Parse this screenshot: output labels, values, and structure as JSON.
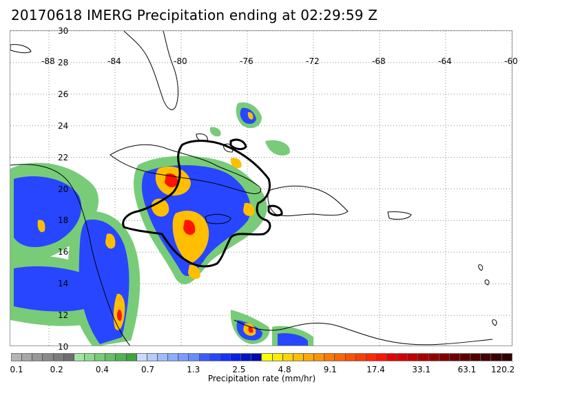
{
  "title": "20170618 IMERG Precipitation ending at 02:29:59 Z",
  "map": {
    "lat_labels": [
      "30",
      "28",
      "26",
      "24",
      "22",
      "20",
      "18",
      "16",
      "14",
      "12",
      "10"
    ],
    "lon_labels": [
      "-88",
      "-84",
      "-80",
      "-76",
      "-72",
      "-68",
      "-64",
      "-60"
    ],
    "lat_range": [
      10,
      30
    ],
    "lon_range": [
      -89,
      -60
    ]
  },
  "colorbar": {
    "title": "Precipitation rate (mm/hr)",
    "ticks": [
      "0.1",
      "0.2",
      "0.4",
      "0.7",
      "1.3",
      "2.5",
      "4.8",
      "9.1",
      "17.4",
      "33.1",
      "63.1",
      "120.2"
    ],
    "colors": [
      "#b4b4b4",
      "#a6a6a6",
      "#989898",
      "#8a8a8a",
      "#7c7c7c",
      "#6e6e6e",
      "#a0e6a0",
      "#8cd98c",
      "#78cc78",
      "#64bf64",
      "#50b250",
      "#3ca53c",
      "#c8dcff",
      "#b4ccff",
      "#a0bcff",
      "#8cacff",
      "#789cff",
      "#648cff",
      "#3c5aff",
      "#2846ff",
      "#1432ff",
      "#0a1ee6",
      "#0014c8",
      "#000aaa",
      "#ffff00",
      "#ffea00",
      "#ffd400",
      "#ffbe00",
      "#ffa800",
      "#ff9200",
      "#ff7800",
      "#ff6400",
      "#ff5000",
      "#ff3c00",
      "#ff2800",
      "#ff1400",
      "#e60000",
      "#d20000",
      "#be0000",
      "#aa0000",
      "#960000",
      "#820000",
      "#6e0000",
      "#5a0000",
      "#500000",
      "#460000",
      "#3c0000",
      "#320000"
    ]
  }
}
